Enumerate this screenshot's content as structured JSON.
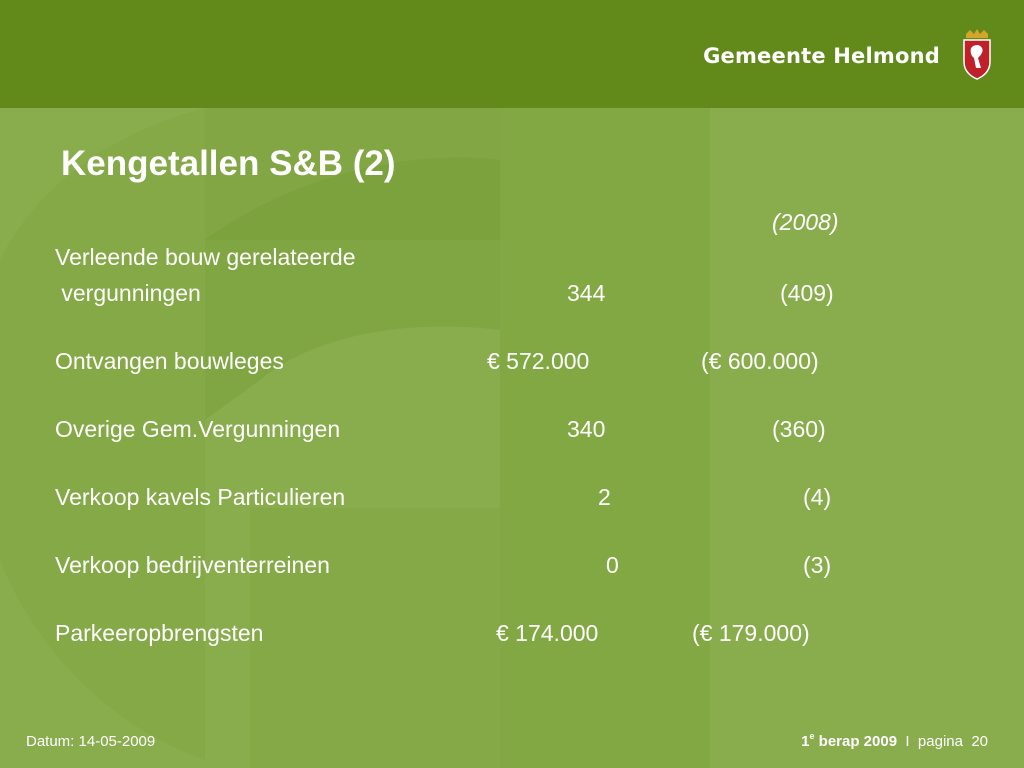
{
  "header": {
    "brand": "Gemeente Helmond",
    "colors": {
      "header_bg": "#618a1a",
      "slide_bg": "#89ac4c",
      "crest_red": "#c0202a"
    }
  },
  "slide": {
    "title": "Kengetallen S&B (2)",
    "year_header": "(2008)",
    "rows": [
      {
        "label_line1": "Verleende bouw gerelateerde",
        "label_line2": " vergunningen",
        "value": "344",
        "previous": "(409)"
      },
      {
        "label": "Ontvangen bouwleges",
        "value": "€ 572.000",
        "previous": "(€ 600.000)"
      },
      {
        "label": "Overige Gem.Vergunningen",
        "value": "340",
        "previous": "(360)"
      },
      {
        "label": "Verkoop kavels Particulieren",
        "value": "2",
        "previous": "(4)"
      },
      {
        "label": "Verkoop bedrijventerreinen",
        "value": "0",
        "previous": "(3)"
      },
      {
        "label": "Parkeeropbrengsten",
        "value": "€ 174.000",
        "previous": "(€ 179.000)"
      }
    ]
  },
  "footer": {
    "date": "Datum: 14-05-2009",
    "report_prefix": "1",
    "report_sup": "e",
    "report_suffix": " berap 2009",
    "separator": "I",
    "page_label": "pagina",
    "page_number": "20"
  },
  "icons": {
    "crest": "city-crest-icon",
    "background": "large-letter-g-watermark"
  }
}
